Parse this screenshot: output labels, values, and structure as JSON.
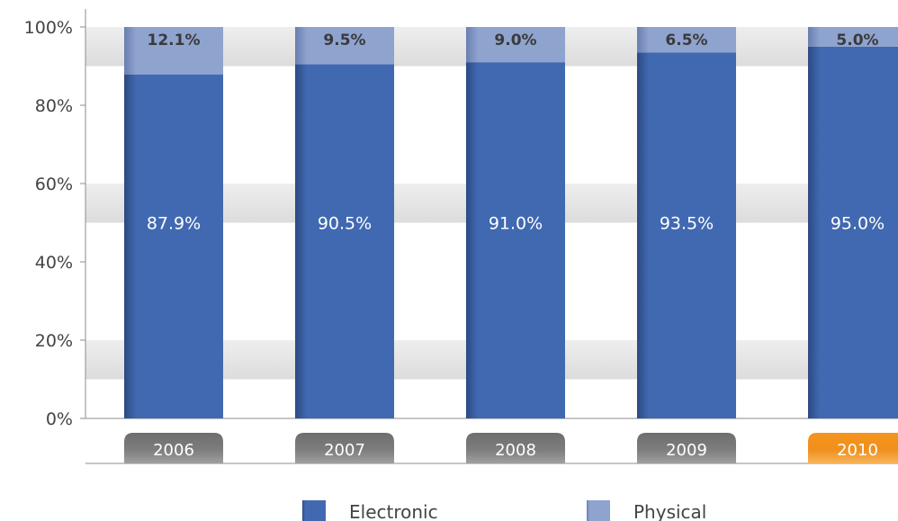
{
  "chart_data": {
    "type": "bar",
    "stacked": true,
    "categories": [
      "2006",
      "2007",
      "2008",
      "2009",
      "2010"
    ],
    "series": [
      {
        "name": "Electronic",
        "values": [
          87.9,
          90.5,
          91.0,
          93.5,
          95.0
        ],
        "labels": [
          "87.9%",
          "90.5%",
          "91.0%",
          "93.5%",
          "95.0%"
        ]
      },
      {
        "name": "Physical",
        "values": [
          12.1,
          9.5,
          9.0,
          6.5,
          5.0
        ],
        "labels": [
          "12.1%",
          "9.5%",
          "9.0%",
          "6.5%",
          "5.0%"
        ]
      }
    ],
    "y_ticks": [
      "0%",
      "20%",
      "40%",
      "60%",
      "80%",
      "100%"
    ],
    "ylim": [
      0,
      100
    ],
    "grid": true,
    "highlight_category": "2010",
    "legend_position": "bottom",
    "colors": {
      "electronic": "#4169b1",
      "physical": "#8fa3cf",
      "category_badge": "#7a7a7a",
      "category_badge_highlight": "#f0901c"
    }
  }
}
